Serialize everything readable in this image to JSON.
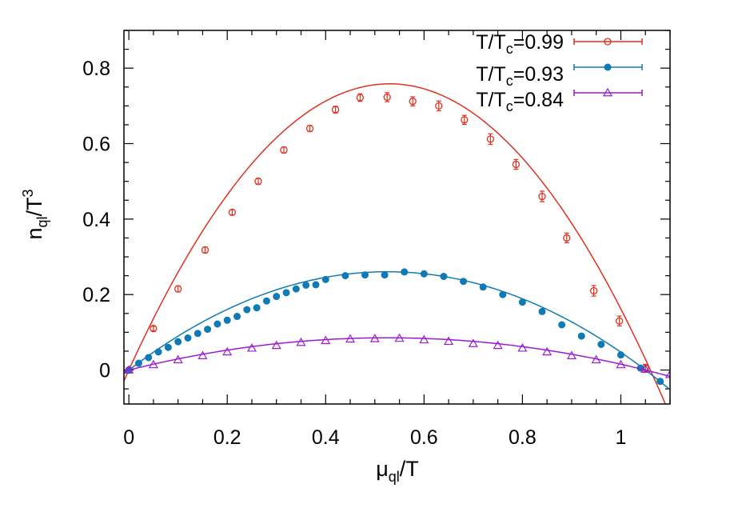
{
  "chart_data": {
    "type": "scatter",
    "xlabel": {
      "base": "μ",
      "sub": "ql",
      "tail": "/T"
    },
    "ylabel": {
      "base": "n",
      "sub": "ql",
      "tail": "/T",
      "sup": "3"
    },
    "xlim": [
      -0.01,
      1.1
    ],
    "ylim": [
      -0.09,
      0.9
    ],
    "xticks": [
      0,
      0.2,
      0.4,
      0.6,
      0.8,
      1
    ],
    "xtick_labels": [
      "0",
      "0.2",
      "0.4",
      "0.6",
      "0.8",
      "1"
    ],
    "yticks": [
      0,
      0.2,
      0.4,
      0.6,
      0.8
    ],
    "ytick_labels": [
      "0",
      "0.2",
      "0.4",
      "0.6",
      "0.8"
    ],
    "legend_position": "top-right",
    "series": [
      {
        "name": "T/Tc=0.99",
        "legend": {
          "pre": "T/T",
          "sub": "c",
          "post": "=0.99"
        },
        "color": "#e0301e",
        "marker": "open-circle",
        "fit": {
          "a": 2.7,
          "c": 1.06
        },
        "x": [
          0.0,
          0.05,
          0.1,
          0.155,
          0.21,
          0.263,
          0.315,
          0.368,
          0.42,
          0.47,
          0.525,
          0.577,
          0.63,
          0.682,
          0.735,
          0.787,
          0.84,
          0.89,
          0.945,
          0.997,
          1.05
        ],
        "y": [
          0.0,
          0.11,
          0.215,
          0.318,
          0.418,
          0.5,
          0.583,
          0.64,
          0.69,
          0.722,
          0.723,
          0.712,
          0.7,
          0.663,
          0.612,
          0.545,
          0.46,
          0.35,
          0.21,
          0.13,
          0.005
        ],
        "err": [
          0.004,
          0.006,
          0.008,
          0.008,
          0.007,
          0.008,
          0.008,
          0.008,
          0.009,
          0.01,
          0.012,
          0.012,
          0.013,
          0.012,
          0.014,
          0.013,
          0.014,
          0.013,
          0.014,
          0.013,
          0.01
        ]
      },
      {
        "name": "T/Tc=0.93",
        "legend": {
          "pre": "T/T",
          "sub": "c",
          "post": "=0.93"
        },
        "color": "#0f7ab5",
        "marker": "filled-circle",
        "fit": {
          "a": 0.945,
          "c": 1.05
        },
        "x": [
          0.0,
          0.02,
          0.04,
          0.06,
          0.08,
          0.1,
          0.12,
          0.14,
          0.16,
          0.18,
          0.2,
          0.22,
          0.24,
          0.26,
          0.28,
          0.3,
          0.32,
          0.34,
          0.36,
          0.38,
          0.4,
          0.44,
          0.48,
          0.52,
          0.56,
          0.6,
          0.64,
          0.68,
          0.72,
          0.76,
          0.8,
          0.84,
          0.88,
          0.92,
          0.96,
          1.0,
          1.04,
          1.08
        ],
        "y": [
          0.0,
          0.018,
          0.033,
          0.048,
          0.06,
          0.075,
          0.085,
          0.097,
          0.108,
          0.122,
          0.132,
          0.142,
          0.16,
          0.165,
          0.183,
          0.195,
          0.205,
          0.215,
          0.225,
          0.226,
          0.24,
          0.25,
          0.252,
          0.252,
          0.26,
          0.255,
          0.248,
          0.235,
          0.22,
          0.2,
          0.18,
          0.155,
          0.12,
          0.09,
          0.068,
          0.04,
          0.005,
          -0.03
        ],
        "err": []
      },
      {
        "name": "T/Tc=0.84",
        "legend": {
          "pre": "T/T",
          "sub": "c",
          "post": "=0.84"
        },
        "color": "#9b1bd1",
        "marker": "open-triangle",
        "fit": {
          "a": 0.31,
          "c": 1.05
        },
        "x": [
          0.0,
          0.05,
          0.1,
          0.15,
          0.2,
          0.25,
          0.3,
          0.35,
          0.4,
          0.45,
          0.5,
          0.55,
          0.6,
          0.65,
          0.7,
          0.75,
          0.8,
          0.85,
          0.9,
          0.95,
          1.0,
          1.05,
          1.1
        ],
        "y": [
          0.0,
          0.014,
          0.027,
          0.038,
          0.048,
          0.058,
          0.065,
          0.073,
          0.078,
          0.082,
          0.083,
          0.084,
          0.08,
          0.076,
          0.07,
          0.065,
          0.058,
          0.048,
          0.038,
          0.027,
          0.014,
          0.002,
          -0.012
        ],
        "err": []
      }
    ]
  }
}
